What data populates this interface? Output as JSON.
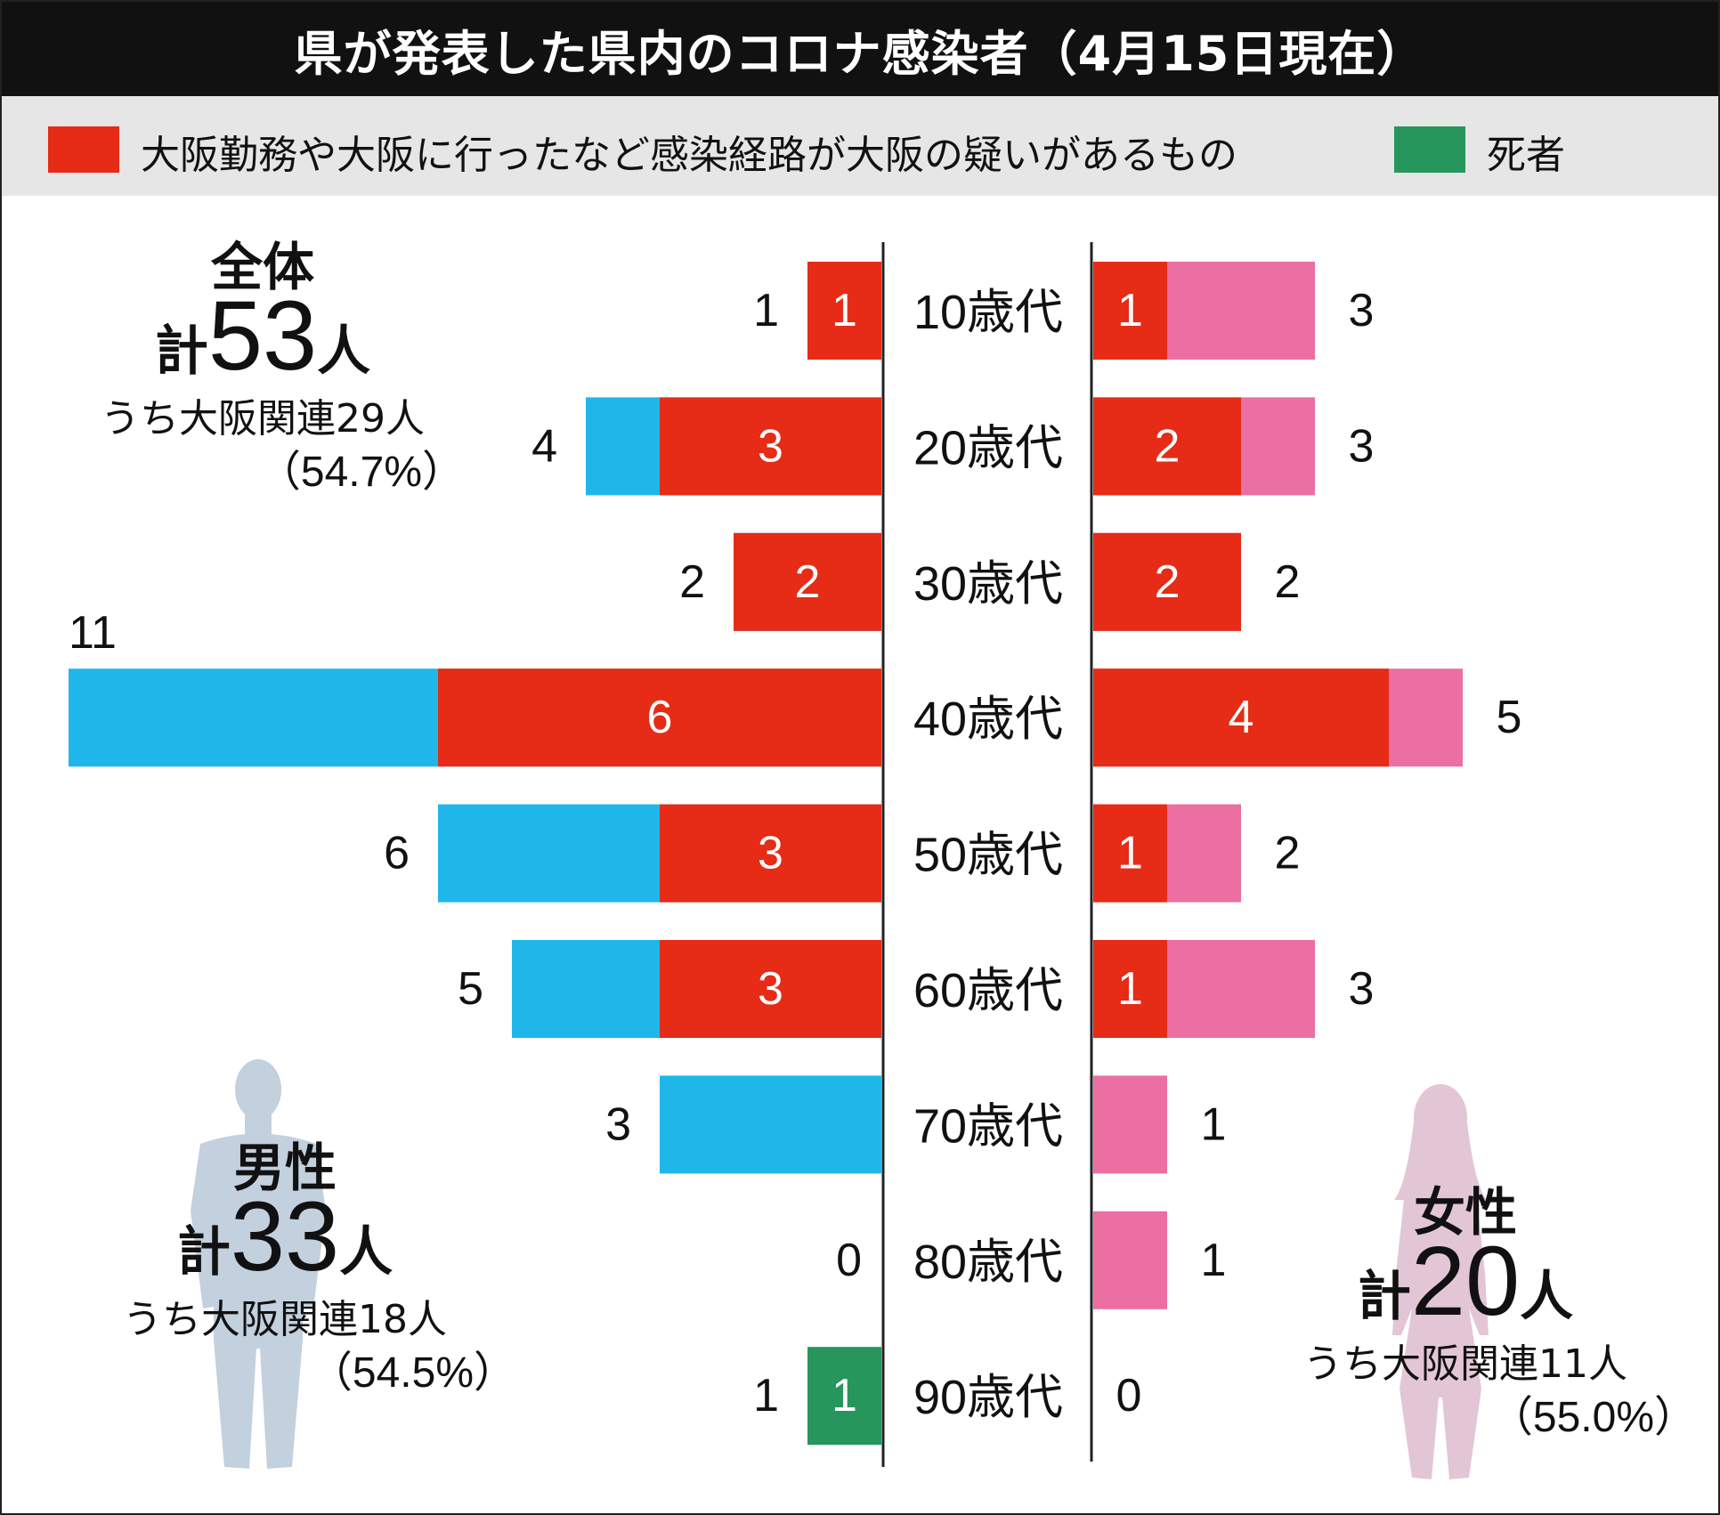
{
  "header": {
    "title": "県が発表した県内のコロナ感染者（4月15日現在）"
  },
  "legend": {
    "items": [
      {
        "label": "大阪勤務や大阪に行ったなど感染経路が大阪の疑いがあるもの",
        "color": "#e62b16"
      },
      {
        "label": "死者",
        "color": "#26965c"
      }
    ]
  },
  "summary": {
    "overall": {
      "heading": "全体",
      "total_prefix": "計",
      "total_number": "53",
      "total_suffix": "人",
      "osaka_label": "うち大阪関連29人",
      "percent": "（54.7%）"
    },
    "male": {
      "heading": "男性",
      "total_prefix": "計",
      "total_number": "33",
      "total_suffix": "人",
      "osaka_label": "うち大阪関連18人",
      "percent": "（54.5%）"
    },
    "female": {
      "heading": "女性",
      "total_prefix": "計",
      "total_number": "20",
      "total_suffix": "人",
      "osaka_label": "うち大阪関連11人",
      "percent": "（55.0%）"
    }
  },
  "chart_data": {
    "type": "bar",
    "orientation": "horizontal-population-pyramid",
    "title": "県が発表した県内のコロナ感染者（4月15日現在）",
    "categories": [
      "10歳代",
      "20歳代",
      "30歳代",
      "40歳代",
      "50歳代",
      "60歳代",
      "70歳代",
      "80歳代",
      "90歳代"
    ],
    "series": [
      {
        "name": "男性",
        "side": "left",
        "totals": [
          1,
          4,
          2,
          11,
          6,
          5,
          3,
          0,
          1
        ],
        "osaka_related": [
          1,
          3,
          2,
          6,
          3,
          3,
          0,
          0,
          0
        ],
        "deaths": [
          0,
          0,
          0,
          0,
          0,
          0,
          0,
          0,
          1
        ]
      },
      {
        "name": "女性",
        "side": "right",
        "totals": [
          3,
          3,
          2,
          5,
          2,
          3,
          1,
          1,
          0
        ],
        "osaka_related": [
          1,
          2,
          2,
          4,
          1,
          1,
          0,
          0,
          0
        ],
        "deaths": [
          0,
          0,
          0,
          0,
          0,
          0,
          0,
          0,
          0
        ]
      }
    ],
    "colors": {
      "male": "#1fb7ea",
      "female": "#eb6fa3",
      "osaka": "#e62b16",
      "death": "#26965c",
      "male_silhouette": "#c3d0de",
      "female_silhouette": "#e3c6d6"
    },
    "xlim": [
      0,
      11
    ]
  }
}
